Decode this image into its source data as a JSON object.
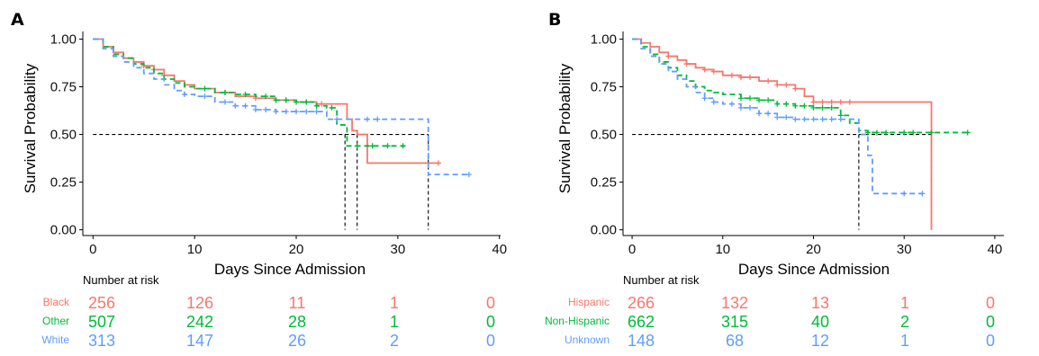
{
  "chart_data": [
    {
      "type": "line",
      "panel_label": "A",
      "xlabel": "Days Since Admission",
      "ylabel": "Survival Probability",
      "xlim": [
        -1,
        41
      ],
      "ylim": [
        -0.03,
        1.04
      ],
      "x_ticks": [
        0,
        10,
        20,
        30,
        40
      ],
      "y_ticks": [
        0.0,
        0.25,
        0.5,
        0.75,
        1.0
      ],
      "y_tick_labels": [
        "0.00",
        "0.25",
        "0.50",
        "0.75",
        "1.00"
      ],
      "median_line": {
        "y": 0.5,
        "x_drops": [
          24.8,
          26,
          33
        ]
      },
      "risk_table": {
        "title": "Number at risk",
        "times": [
          0,
          10,
          20,
          30,
          40
        ],
        "rows": [
          {
            "group": "Black",
            "color": "#F8766D",
            "counts": [
              "256",
              "126",
              "11",
              "1",
              "0"
            ]
          },
          {
            "group": "Other",
            "color": "#00BA38",
            "counts": [
              "507",
              "242",
              "28",
              "1",
              "0"
            ]
          },
          {
            "group": "White",
            "color": "#619CFF",
            "counts": [
              "313",
              "147",
              "26",
              "2",
              "0"
            ]
          }
        ]
      },
      "series": [
        {
          "color": "#F8766D",
          "dash": false,
          "x": [
            0,
            1,
            2,
            3,
            4,
            5,
            6,
            7,
            8,
            9,
            10,
            12,
            14,
            16,
            18,
            20,
            22,
            23,
            25,
            25.5,
            26,
            27,
            34
          ],
          "y": [
            1.0,
            0.96,
            0.93,
            0.9,
            0.88,
            0.86,
            0.84,
            0.81,
            0.78,
            0.76,
            0.74,
            0.72,
            0.7,
            0.69,
            0.68,
            0.67,
            0.66,
            0.66,
            0.58,
            0.52,
            0.5,
            0.35,
            0.35
          ],
          "censor_x": [
            5,
            6,
            7,
            13,
            16,
            18,
            19,
            21,
            22.5,
            34
          ]
        },
        {
          "color": "#00BA38",
          "dash": true,
          "x": [
            0,
            1,
            2,
            3,
            4,
            5,
            6,
            7,
            8,
            9,
            10,
            12,
            14,
            16,
            18,
            20,
            22,
            23,
            24,
            25,
            31
          ],
          "y": [
            1.0,
            0.96,
            0.92,
            0.9,
            0.87,
            0.85,
            0.82,
            0.79,
            0.77,
            0.75,
            0.74,
            0.72,
            0.71,
            0.7,
            0.68,
            0.67,
            0.65,
            0.64,
            0.55,
            0.44,
            0.44
          ],
          "censor_x": [
            11,
            13,
            15,
            17,
            18,
            19,
            20,
            21,
            22,
            23.5,
            26,
            27.5,
            29,
            30.5
          ]
        },
        {
          "color": "#619CFF",
          "dash": true,
          "x": [
            0,
            1,
            2,
            3,
            4,
            5,
            6,
            7,
            8,
            9,
            10,
            12,
            14,
            16,
            18,
            20,
            22,
            23,
            24,
            33,
            37
          ],
          "y": [
            1.0,
            0.95,
            0.91,
            0.88,
            0.85,
            0.82,
            0.79,
            0.76,
            0.73,
            0.71,
            0.7,
            0.67,
            0.65,
            0.63,
            0.62,
            0.62,
            0.62,
            0.58,
            0.58,
            0.29,
            0.29
          ],
          "censor_x": [
            9,
            11,
            13,
            14,
            15,
            16,
            17,
            18,
            19,
            20,
            21,
            22,
            24,
            27,
            28,
            37
          ]
        }
      ]
    },
    {
      "type": "line",
      "panel_label": "B",
      "xlabel": "Days Since Admission",
      "ylabel": "Survival Probability",
      "xlim": [
        -1,
        41
      ],
      "ylim": [
        -0.03,
        1.04
      ],
      "x_ticks": [
        0,
        10,
        20,
        30,
        40
      ],
      "y_ticks": [
        0.0,
        0.25,
        0.5,
        0.75,
        1.0
      ],
      "y_tick_labels": [
        "0.00",
        "0.25",
        "0.50",
        "0.75",
        "1.00"
      ],
      "median_line": {
        "y": 0.5,
        "x_drops": [
          25,
          33
        ]
      },
      "risk_table": {
        "title": "Number at risk",
        "times": [
          0,
          10,
          20,
          30,
          40
        ],
        "rows": [
          {
            "group": "Hispanic",
            "color": "#F8766D",
            "counts": [
              "266",
              "132",
              "13",
              "1",
              "0"
            ]
          },
          {
            "group": "Non-Hispanic",
            "color": "#00BA38",
            "counts": [
              "662",
              "315",
              "40",
              "2",
              "0"
            ]
          },
          {
            "group": "Unknown",
            "color": "#619CFF",
            "counts": [
              "148",
              "68",
              "12",
              "1",
              "0"
            ]
          }
        ]
      },
      "series": [
        {
          "color": "#F8766D",
          "dash": false,
          "x": [
            0,
            1,
            2,
            3,
            4,
            5,
            6,
            7,
            8,
            9,
            10,
            12,
            14,
            16,
            18,
            19,
            20,
            33,
            33.01
          ],
          "y": [
            1.0,
            0.98,
            0.96,
            0.93,
            0.91,
            0.89,
            0.87,
            0.85,
            0.84,
            0.83,
            0.81,
            0.8,
            0.78,
            0.76,
            0.74,
            0.7,
            0.67,
            0.67,
            0.0
          ],
          "censor_x": [
            4,
            6,
            8,
            9,
            11,
            12,
            13,
            15,
            16,
            17,
            18,
            20,
            21,
            22,
            23,
            24
          ]
        },
        {
          "color": "#00BA38",
          "dash": true,
          "x": [
            0,
            1,
            2,
            3,
            4,
            5,
            6,
            7,
            8,
            9,
            10,
            12,
            14,
            16,
            18,
            20,
            22,
            23,
            24,
            25,
            26,
            37
          ],
          "y": [
            1.0,
            0.96,
            0.92,
            0.88,
            0.85,
            0.81,
            0.78,
            0.75,
            0.73,
            0.72,
            0.71,
            0.69,
            0.68,
            0.66,
            0.65,
            0.64,
            0.64,
            0.6,
            0.56,
            0.52,
            0.51,
            0.51
          ],
          "censor_x": [
            12,
            13,
            14,
            15,
            16,
            17,
            18,
            19,
            20,
            21,
            22,
            23,
            26,
            27,
            28,
            30,
            31,
            33,
            37
          ]
        },
        {
          "color": "#619CFF",
          "dash": true,
          "x": [
            0,
            1,
            2,
            3,
            4,
            5,
            6,
            7,
            8,
            9,
            10,
            12,
            14,
            16,
            18,
            20,
            22,
            24,
            25,
            26,
            26.5,
            32
          ],
          "y": [
            1.0,
            0.95,
            0.91,
            0.87,
            0.83,
            0.79,
            0.75,
            0.72,
            0.69,
            0.67,
            0.66,
            0.64,
            0.61,
            0.59,
            0.58,
            0.58,
            0.58,
            0.58,
            0.5,
            0.39,
            0.19,
            0.19
          ],
          "censor_x": [
            8,
            9,
            11,
            12,
            13,
            14,
            15,
            16,
            17,
            18,
            19,
            20,
            21,
            22,
            23,
            30,
            32
          ]
        }
      ]
    }
  ]
}
